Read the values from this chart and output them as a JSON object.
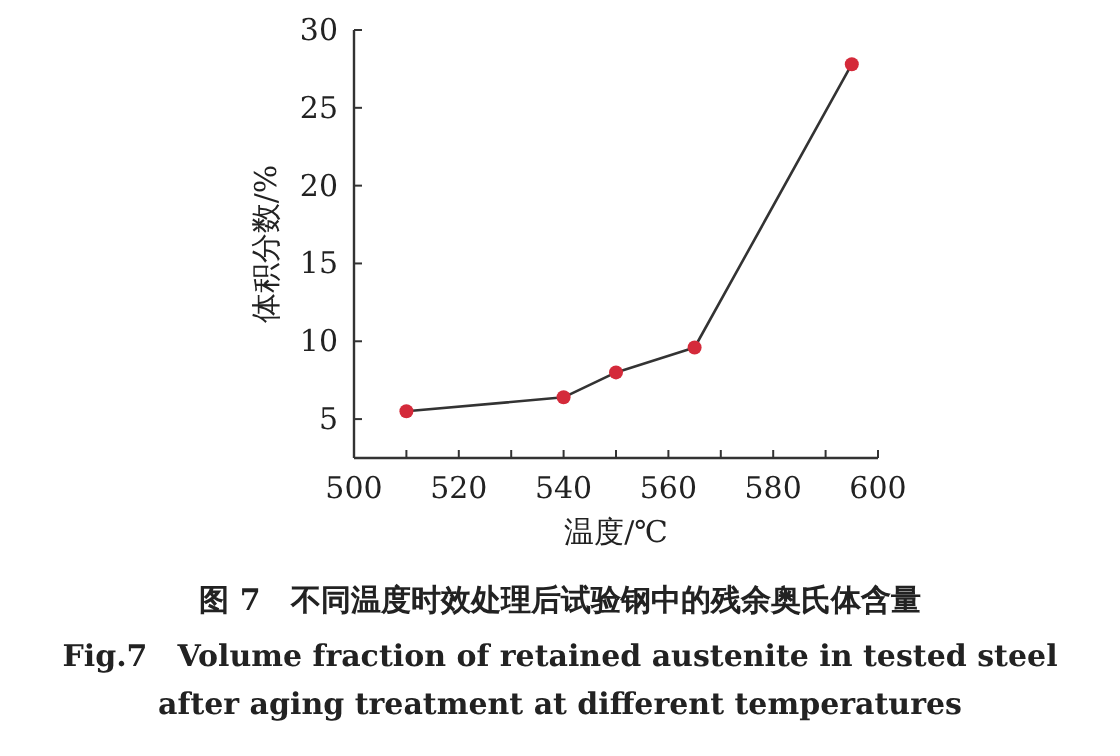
{
  "chart_data": {
    "type": "line",
    "title": "图 7　不同温度时效处理后试验钢中的残余奥氏体含量",
    "subtitle": "Fig.7　Volume fraction of retained austenite in tested steel after aging treatment at different temperatures",
    "xlabel": "温度/℃",
    "ylabel": "体积分数/%",
    "x": [
      510,
      540,
      550,
      565,
      595
    ],
    "series": [
      {
        "color": "#333333",
        "values": [
          5.5,
          6.4,
          8.0,
          9.6,
          27.8
        ]
      }
    ],
    "marker": "circle",
    "line_style": "solid",
    "grid": false,
    "xlim": [
      500,
      600
    ],
    "xticks": [
      500,
      {
        "value": 510,
        "label": null
      },
      520,
      {
        "value": 530,
        "label": null
      },
      540,
      {
        "value": 550,
        "label": null
      },
      560,
      {
        "value": 570,
        "label": null
      },
      580,
      {
        "value": 590,
        "label": null
      },
      600
    ],
    "ylim": [
      2.5,
      30
    ],
    "yticks": [
      5,
      10,
      15,
      20,
      25,
      30
    ]
  }
}
